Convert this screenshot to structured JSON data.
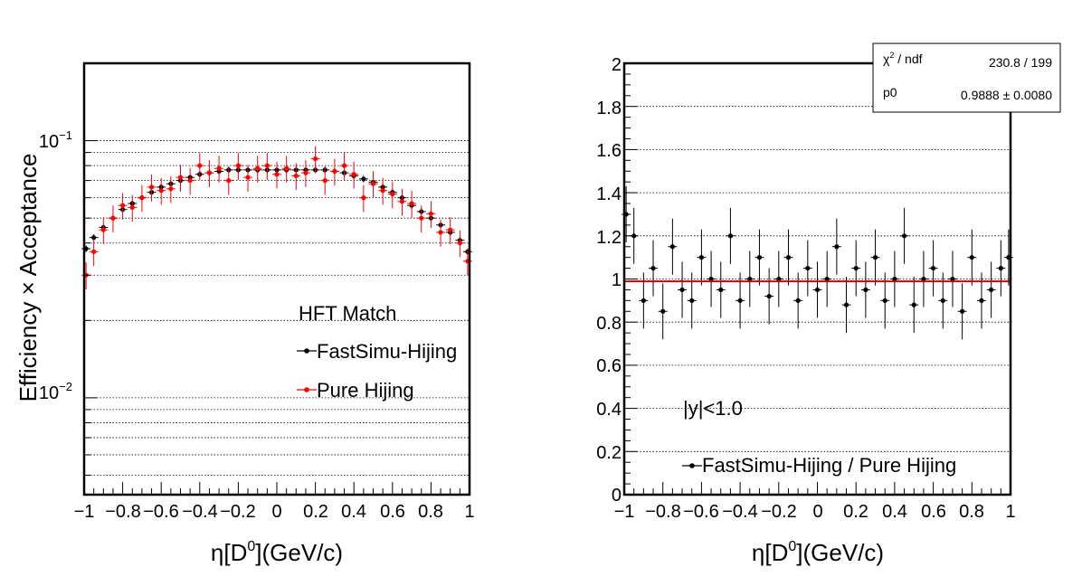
{
  "panels": {
    "left": {
      "ylabel": "Efficiency × Acceptance",
      "xlabel_main": "η[D",
      "xlabel_sup": "0",
      "xlabel_rest": "](GeV/c)",
      "xtick_labels": [
        "−1",
        "−0.8",
        "−0.6",
        "−0.4",
        "−0.2",
        "0",
        "0.2",
        "0.4",
        "0.6",
        "0.8",
        "1"
      ],
      "ytick_labels": [
        {
          "base": "10",
          "exp": "−1",
          "value": 0.1
        },
        {
          "base": "10",
          "exp": "−2",
          "value": 0.01
        }
      ],
      "legend": {
        "header": "HFT Match",
        "entries": [
          {
            "label": "FastSimu-Hijing",
            "color": "#000000"
          },
          {
            "label": "Pure Hijing",
            "color": "#ff0000"
          }
        ]
      }
    },
    "right": {
      "xlabel_main": "η[D",
      "xlabel_sup": "0",
      "xlabel_rest": "](GeV/c)",
      "xtick_labels": [
        "−1",
        "−0.8",
        "−0.6",
        "−0.4",
        "−0.2",
        "0",
        "0.2",
        "0.4",
        "0.6",
        "0.8",
        "1"
      ],
      "ytick_labels": [
        "0",
        "0.2",
        "0.4",
        "0.6",
        "0.8",
        "1",
        "1.2",
        "1.4",
        "1.6",
        "1.8",
        "2"
      ],
      "annotation": "|y|<1.0",
      "legend": {
        "entries": [
          {
            "label": "FastSimu-Hijing / Pure Hijing",
            "color": "#000000"
          }
        ]
      },
      "fit_box": {
        "row1_label_base": "χ",
        "row1_label_sup": "2",
        "row1_label_rest": " / ndf",
        "row1_value": "230.8 / 199",
        "row2_label": "p0",
        "row2_value": "0.9888 ± 0.0080"
      }
    }
  },
  "chart_data": [
    {
      "type": "scatter",
      "title": "",
      "xlabel": "η[D0](GeV/c)",
      "ylabel": "Efficiency × Acceptance",
      "xlim": [
        -1,
        1
      ],
      "ylim": [
        0.0042,
        0.2
      ],
      "yscale": "log",
      "grid": "horizontal",
      "legend_position": "center-right",
      "series": [
        {
          "name": "FastSimu-Hijing",
          "color": "#000000",
          "x": [
            -0.99,
            -0.95,
            -0.9,
            -0.85,
            -0.8,
            -0.75,
            -0.7,
            -0.65,
            -0.6,
            -0.55,
            -0.5,
            -0.45,
            -0.4,
            -0.35,
            -0.3,
            -0.25,
            -0.2,
            -0.15,
            -0.1,
            -0.05,
            0.0,
            0.05,
            0.1,
            0.15,
            0.2,
            0.25,
            0.3,
            0.35,
            0.4,
            0.45,
            0.5,
            0.55,
            0.6,
            0.65,
            0.7,
            0.75,
            0.8,
            0.85,
            0.9,
            0.95,
            0.99
          ],
          "y": [
            0.038,
            0.042,
            0.046,
            0.05,
            0.054,
            0.057,
            0.06,
            0.063,
            0.066,
            0.068,
            0.07,
            0.072,
            0.074,
            0.075,
            0.076,
            0.077,
            0.077,
            0.077,
            0.077,
            0.077,
            0.077,
            0.077,
            0.077,
            0.077,
            0.077,
            0.077,
            0.076,
            0.075,
            0.073,
            0.071,
            0.069,
            0.066,
            0.063,
            0.06,
            0.056,
            0.053,
            0.05,
            0.047,
            0.044,
            0.041,
            0.037
          ]
        },
        {
          "name": "Pure Hijing",
          "color": "#ff0000",
          "x": [
            -0.99,
            -0.95,
            -0.9,
            -0.85,
            -0.8,
            -0.75,
            -0.7,
            -0.65,
            -0.6,
            -0.55,
            -0.5,
            -0.45,
            -0.4,
            -0.35,
            -0.3,
            -0.25,
            -0.2,
            -0.15,
            -0.1,
            -0.05,
            0.0,
            0.05,
            0.1,
            0.15,
            0.2,
            0.25,
            0.3,
            0.35,
            0.4,
            0.45,
            0.5,
            0.55,
            0.6,
            0.65,
            0.7,
            0.75,
            0.8,
            0.85,
            0.9,
            0.95,
            0.99
          ],
          "y": [
            0.03,
            0.037,
            0.045,
            0.05,
            0.056,
            0.055,
            0.06,
            0.066,
            0.064,
            0.065,
            0.072,
            0.07,
            0.08,
            0.075,
            0.078,
            0.07,
            0.08,
            0.072,
            0.078,
            0.08,
            0.074,
            0.078,
            0.073,
            0.075,
            0.085,
            0.07,
            0.076,
            0.08,
            0.074,
            0.06,
            0.068,
            0.064,
            0.062,
            0.058,
            0.057,
            0.05,
            0.052,
            0.044,
            0.045,
            0.04,
            0.034
          ]
        }
      ]
    },
    {
      "type": "scatter",
      "title": "",
      "xlabel": "η[D0](GeV/c)",
      "ylabel": "",
      "xlim": [
        -1,
        1
      ],
      "ylim": [
        0,
        2
      ],
      "grid": "horizontal",
      "legend_position": "bottom-right",
      "series": [
        {
          "name": "FastSimu-Hijing / Pure Hijing",
          "color": "#000000",
          "x": [
            -0.99,
            -0.95,
            -0.9,
            -0.85,
            -0.8,
            -0.75,
            -0.7,
            -0.65,
            -0.6,
            -0.55,
            -0.5,
            -0.45,
            -0.4,
            -0.35,
            -0.3,
            -0.25,
            -0.2,
            -0.15,
            -0.1,
            -0.05,
            0.0,
            0.05,
            0.1,
            0.15,
            0.2,
            0.25,
            0.3,
            0.35,
            0.4,
            0.45,
            0.5,
            0.55,
            0.6,
            0.65,
            0.7,
            0.75,
            0.8,
            0.85,
            0.9,
            0.95,
            0.99
          ],
          "y": [
            1.3,
            1.2,
            0.9,
            1.05,
            0.85,
            1.15,
            0.95,
            0.9,
            1.1,
            1.0,
            0.95,
            1.2,
            0.9,
            1.0,
            1.1,
            0.92,
            1.0,
            1.1,
            0.9,
            1.05,
            0.95,
            1.0,
            1.15,
            0.88,
            1.05,
            0.95,
            1.1,
            0.9,
            1.0,
            1.2,
            0.88,
            1.0,
            1.05,
            0.9,
            1.0,
            0.85,
            1.1,
            0.9,
            0.95,
            1.05,
            1.1
          ]
        },
        {
          "name": "p0 fit",
          "color": "#cc0000",
          "x": [
            -1,
            1
          ],
          "y": [
            0.9888,
            0.9888
          ]
        }
      ]
    }
  ]
}
